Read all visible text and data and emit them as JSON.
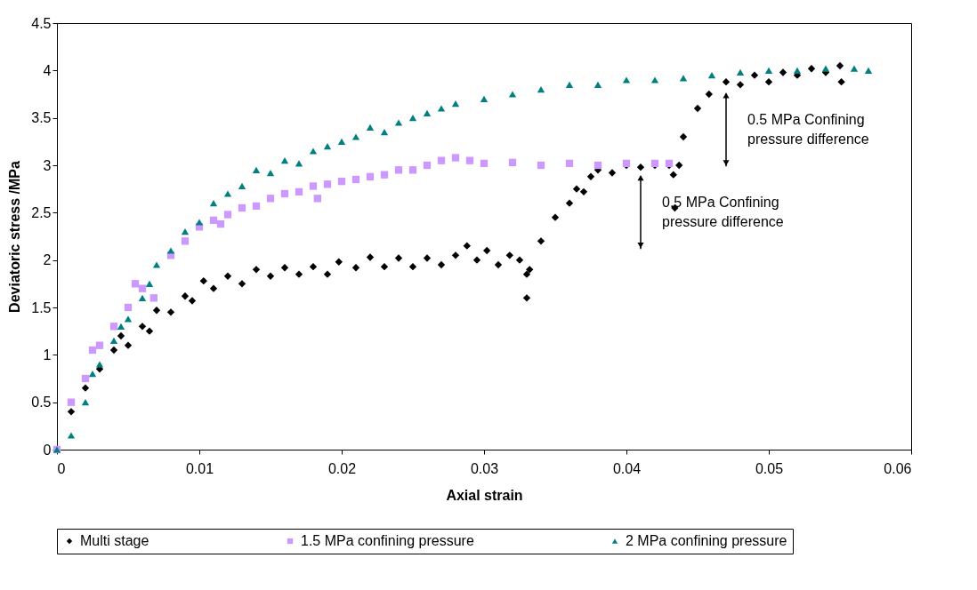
{
  "chart_data": {
    "type": "scatter",
    "xlabel": "Axial strain",
    "ylabel": "Deviatoric stress /MPa",
    "xlim": [
      0,
      0.06
    ],
    "xticks": [
      0,
      0.01,
      0.02,
      0.03,
      0.04,
      0.05,
      0.06
    ],
    "ylim": [
      0,
      4.5
    ],
    "yticks": [
      0,
      0.5,
      1,
      1.5,
      2,
      2.5,
      3,
      3.5,
      4,
      4.5
    ],
    "grid": false,
    "legend": "bottom",
    "annotations": [
      {
        "text": "0.5 MPa Confining pressure difference",
        "x": 0.047,
        "y": 3.85
      },
      {
        "text": "0.5 MPa Confining pressure difference",
        "x": 0.041,
        "y": 2.98
      }
    ],
    "series": [
      {
        "name": "Multi stage",
        "color": "#000000",
        "marker": "diamond",
        "x": [
          0.001,
          0.002,
          0.003,
          0.004,
          0.0045,
          0.005,
          0.006,
          0.0065,
          0.007,
          0.008,
          0.009,
          0.0095,
          0.0103,
          0.011,
          0.012,
          0.013,
          0.014,
          0.015,
          0.016,
          0.017,
          0.018,
          0.019,
          0.0198,
          0.021,
          0.022,
          0.023,
          0.024,
          0.025,
          0.026,
          0.027,
          0.028,
          0.0288,
          0.0295,
          0.0302,
          0.031,
          0.0318,
          0.0325,
          0.033,
          0.033,
          0.0332,
          0.034,
          0.035,
          0.036,
          0.0365,
          0.037,
          0.0375,
          0.038,
          0.039,
          0.04,
          0.041,
          0.042,
          0.043,
          0.0433,
          0.0434,
          0.0437,
          0.044,
          0.045,
          0.0458,
          0.047,
          0.048,
          0.049,
          0.05,
          0.051,
          0.052,
          0.053,
          0.054,
          0.055,
          0.0551
        ],
        "values": [
          0.4,
          0.65,
          0.85,
          1.05,
          1.2,
          1.1,
          1.3,
          1.25,
          1.47,
          1.45,
          1.62,
          1.57,
          1.78,
          1.7,
          1.83,
          1.75,
          1.9,
          1.83,
          1.92,
          1.85,
          1.93,
          1.85,
          1.98,
          1.92,
          2.03,
          1.93,
          2.02,
          1.93,
          2.02,
          1.95,
          2.05,
          2.15,
          2.0,
          2.1,
          1.95,
          2.05,
          2.0,
          1.85,
          1.6,
          1.9,
          2.2,
          2.45,
          2.6,
          2.75,
          2.72,
          2.88,
          2.95,
          2.92,
          3.0,
          2.98,
          3.0,
          3.0,
          2.9,
          2.55,
          3.0,
          3.3,
          3.6,
          3.75,
          3.88,
          3.85,
          3.95,
          3.88,
          3.98,
          3.95,
          4.02,
          3.98,
          4.05,
          3.88
        ]
      },
      {
        "name": "1.5 MPa confining pressure",
        "color": "#cc99ff",
        "marker": "square",
        "x": [
          0,
          0.001,
          0.002,
          0.0025,
          0.003,
          0.004,
          0.005,
          0.0055,
          0.006,
          0.0068,
          0.007,
          0.008,
          0.009,
          0.01,
          0.011,
          0.0115,
          0.012,
          0.013,
          0.014,
          0.015,
          0.016,
          0.017,
          0.018,
          0.0183,
          0.019,
          0.02,
          0.021,
          0.022,
          0.023,
          0.024,
          0.025,
          0.026,
          0.027,
          0.028,
          0.029,
          0.03,
          0.032,
          0.034,
          0.036,
          0.038,
          0.04,
          0.042,
          0.043
        ],
        "values": [
          0,
          0.5,
          0.75,
          1.05,
          1.1,
          1.3,
          1.5,
          1.75,
          1.7,
          1.6,
          null,
          2.05,
          2.2,
          2.35,
          2.42,
          2.38,
          2.48,
          2.55,
          2.57,
          2.65,
          2.7,
          2.72,
          2.78,
          2.65,
          2.8,
          2.83,
          2.85,
          2.88,
          2.9,
          2.95,
          2.95,
          3.0,
          3.05,
          3.08,
          3.05,
          3.02,
          3.03,
          3.0,
          3.02,
          3.0,
          3.02,
          3.02,
          3.02
        ]
      },
      {
        "name": "2 MPa confining pressure",
        "color": "#008080",
        "marker": "triangle",
        "x": [
          0,
          0.001,
          0.002,
          0.0025,
          0.003,
          0.004,
          0.0045,
          0.005,
          0.006,
          0.0065,
          0.007,
          0.008,
          0.009,
          0.01,
          0.011,
          0.012,
          0.013,
          0.014,
          0.015,
          0.016,
          0.017,
          0.018,
          0.019,
          0.02,
          0.021,
          0.022,
          0.023,
          0.024,
          0.025,
          0.026,
          0.027,
          0.028,
          0.03,
          0.032,
          0.034,
          0.036,
          0.038,
          0.04,
          0.042,
          0.044,
          0.046,
          0.048,
          0.05,
          0.052,
          0.054,
          0.056,
          0.057
        ],
        "values": [
          0,
          0.15,
          0.5,
          0.8,
          0.9,
          1.15,
          1.3,
          1.38,
          1.6,
          1.75,
          1.95,
          2.1,
          2.3,
          2.4,
          2.6,
          2.7,
          2.78,
          2.95,
          2.92,
          3.05,
          3.02,
          3.15,
          3.2,
          3.25,
          3.3,
          3.4,
          3.35,
          3.45,
          3.5,
          3.55,
          3.6,
          3.65,
          3.7,
          3.75,
          3.8,
          3.85,
          3.85,
          3.9,
          3.9,
          3.92,
          3.95,
          3.98,
          4.0,
          4.0,
          4.02,
          4.02,
          4.0
        ]
      }
    ]
  }
}
